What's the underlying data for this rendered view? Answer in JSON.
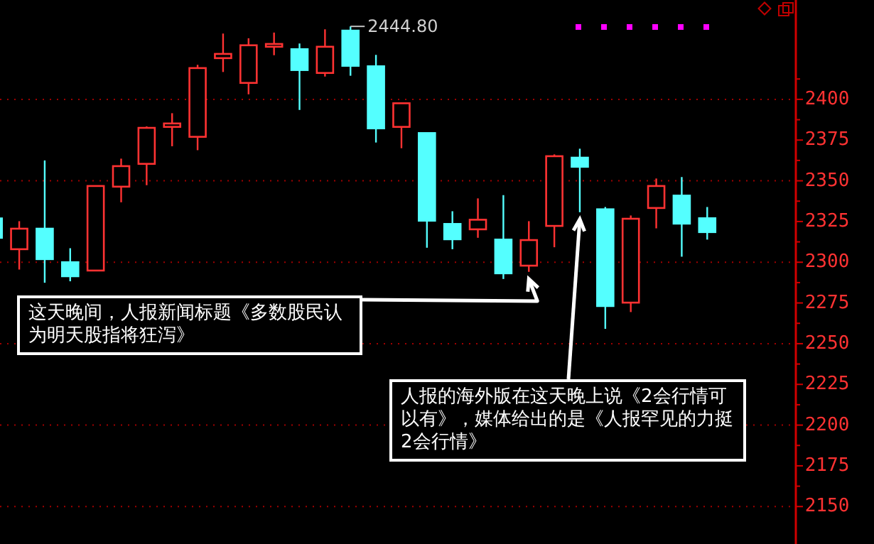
{
  "chart_data": {
    "type": "candlestick",
    "categories": [
      null,
      null,
      null,
      null,
      null,
      null,
      null,
      null,
      null,
      null,
      null,
      null,
      null,
      null,
      null,
      null,
      null,
      null,
      null,
      null,
      null,
      null,
      null,
      null,
      null,
      null,
      null,
      null,
      null
    ],
    "ohlc": [
      [
        2326.9,
        2328,
        2313,
        2315.0
      ],
      [
        2308.0,
        2325.2,
        2295.5,
        2320.6
      ],
      [
        2320.6,
        2362.5,
        2287.4,
        2301.9
      ],
      [
        2300.0,
        2308.6,
        2288.3,
        2291.4
      ],
      [
        2294.9,
        2346.8,
        2294.9,
        2346.8
      ],
      [
        2346.4,
        2363.6,
        2336.8,
        2359.0
      ],
      [
        2360.4,
        2383.4,
        2347.3,
        2382.5
      ],
      [
        2383.1,
        2391.5,
        2371.2,
        2385.2
      ],
      [
        2377.0,
        2421.2,
        2368.8,
        2419.2
      ],
      [
        2425.3,
        2440.4,
        2416.8,
        2427.9
      ],
      [
        2410.1,
        2437.5,
        2403.1,
        2433.2
      ],
      [
        2432.3,
        2441.0,
        2427.1,
        2434.0
      ],
      [
        2430.8,
        2434.3,
        2393.5,
        2418.0
      ],
      [
        2416.2,
        2443.0,
        2414.0,
        2432.3
      ],
      [
        2442.2,
        2444.8,
        2414.5,
        2420.6
      ],
      [
        2420.3,
        2427.3,
        2373.5,
        2382.2
      ],
      [
        2383.1,
        2397.6,
        2370.0,
        2397.6
      ],
      [
        2379.3,
        2379.3,
        2308.9,
        2325.5
      ],
      [
        2323.5,
        2331.3,
        2308.0,
        2314.1
      ],
      [
        2320.2,
        2339.2,
        2315.0,
        2326.1
      ],
      [
        2313.9,
        2341.2,
        2289.7,
        2293.2
      ],
      [
        2297.9,
        2325.2,
        2294.1,
        2313.6
      ],
      [
        2322.3,
        2366.2,
        2309.2,
        2365.1
      ],
      [
        2364.2,
        2369.7,
        2330.7,
        2358.6
      ],
      [
        2332.5,
        2333.9,
        2259.1,
        2273.1
      ],
      [
        2275.2,
        2328.7,
        2269.4,
        2326.7
      ],
      [
        2333.3,
        2351.4,
        2320.8,
        2346.8
      ],
      [
        2340.9,
        2352.3,
        2303.4,
        2323.7
      ],
      [
        2327.0,
        2333.9,
        2313.9,
        2318.5
      ]
    ],
    "colors": [
      "#54ffff",
      "#ff3232",
      "#54ffff",
      "#54ffff",
      "#ff3232",
      "#ff3232",
      "#ff3232",
      "#ff3232",
      "#ff3232",
      "#ff3232",
      "#ff3232",
      "#ff3232",
      "#54ffff",
      "#ff3232",
      "#54ffff",
      "#54ffff",
      "#ff3232",
      "#54ffff",
      "#54ffff",
      "#ff3232",
      "#54ffff",
      "#ff3232",
      "#ff3232",
      "#54ffff",
      "#54ffff",
      "#ff3232",
      "#ff3232",
      "#54ffff",
      "#54ffff"
    ],
    "ylim": [
      2127,
      2461
    ],
    "yticks": [
      2150,
      2175,
      2200,
      2225,
      2250,
      2275,
      2300,
      2325,
      2350,
      2375,
      2400
    ],
    "grid": "y",
    "annotations": [
      "2444.80",
      "这天晚间，人报新闻标题《多数股民认为明天股指将狂泻》",
      "人报的海外版在这天晚上说《2会行情可以有》，媒体给出的是《人报罕见的力挺2会行情》"
    ]
  }
}
